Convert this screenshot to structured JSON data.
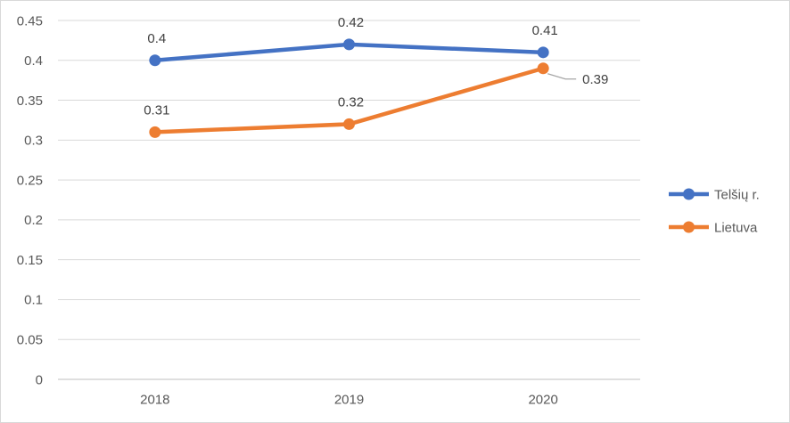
{
  "chart_data": {
    "type": "line",
    "title": "",
    "xlabel": "",
    "ylabel": "",
    "categories": [
      "2018",
      "2019",
      "2020"
    ],
    "series": [
      {
        "name": "Telšių r.",
        "color": "#4472C4",
        "values": [
          0.4,
          0.42,
          0.41
        ],
        "data_labels": [
          "0.4",
          "0.42",
          "0.41"
        ],
        "label_placements": [
          "above",
          "above",
          "above"
        ]
      },
      {
        "name": "Lietuva",
        "color": "#ED7D31",
        "values": [
          0.31,
          0.32,
          0.39
        ],
        "data_labels": [
          "0.31",
          "0.32",
          "0.39"
        ],
        "label_placements": [
          "above",
          "above",
          "callout-right"
        ]
      }
    ],
    "y_ticks": [
      {
        "value": 0.45,
        "label": "0.45"
      },
      {
        "value": 0.4,
        "label": "0.4"
      },
      {
        "value": 0.35,
        "label": "0.35"
      },
      {
        "value": 0.3,
        "label": "0.3"
      },
      {
        "value": 0.25,
        "label": "0.25"
      },
      {
        "value": 0.2,
        "label": "0.2"
      },
      {
        "value": 0.15,
        "label": "0.15"
      },
      {
        "value": 0.1,
        "label": "0.1"
      },
      {
        "value": 0.05,
        "label": "0.05"
      },
      {
        "value": 0,
        "label": "0"
      }
    ],
    "ylim": [
      0,
      0.45
    ],
    "grid": true,
    "legend_position": "right"
  },
  "styles": {
    "grid_color": "#D9D9D9",
    "axis_line_color": "#BFBFBF",
    "tick_text_color": "#595959",
    "data_label_color": "#404040",
    "leader_line_color": "#A6A6A6",
    "border_color": "#D9D9D9",
    "background": "#FFFFFF"
  }
}
